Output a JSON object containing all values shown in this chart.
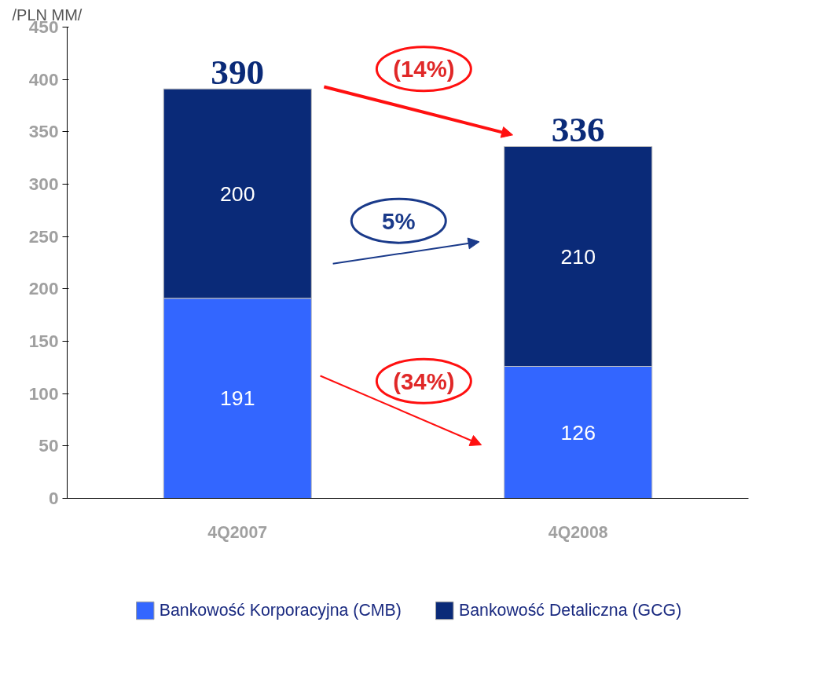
{
  "chart_data": {
    "type": "bar",
    "stacked": true,
    "ylabel": "/PLN MM/",
    "categories": [
      "4Q2007",
      "4Q2008"
    ],
    "series": [
      {
        "name": "Bankowość Korporacyjna (CMB)",
        "color": "#3366ff",
        "values": [
          191,
          126
        ]
      },
      {
        "name": "Bankowość Detaliczna (GCG)",
        "color": "#0a2a78",
        "values": [
          200,
          210
        ]
      }
    ],
    "totals": [
      "390",
      "336"
    ],
    "data_labels": true,
    "ylim": [
      0,
      450
    ],
    "yticks": [
      0,
      50,
      100,
      150,
      200,
      250,
      300,
      350,
      400,
      450
    ],
    "grid": false,
    "legend": "bottom",
    "annotations": [
      "(14%)",
      "5%",
      "(34%)"
    ]
  }
}
